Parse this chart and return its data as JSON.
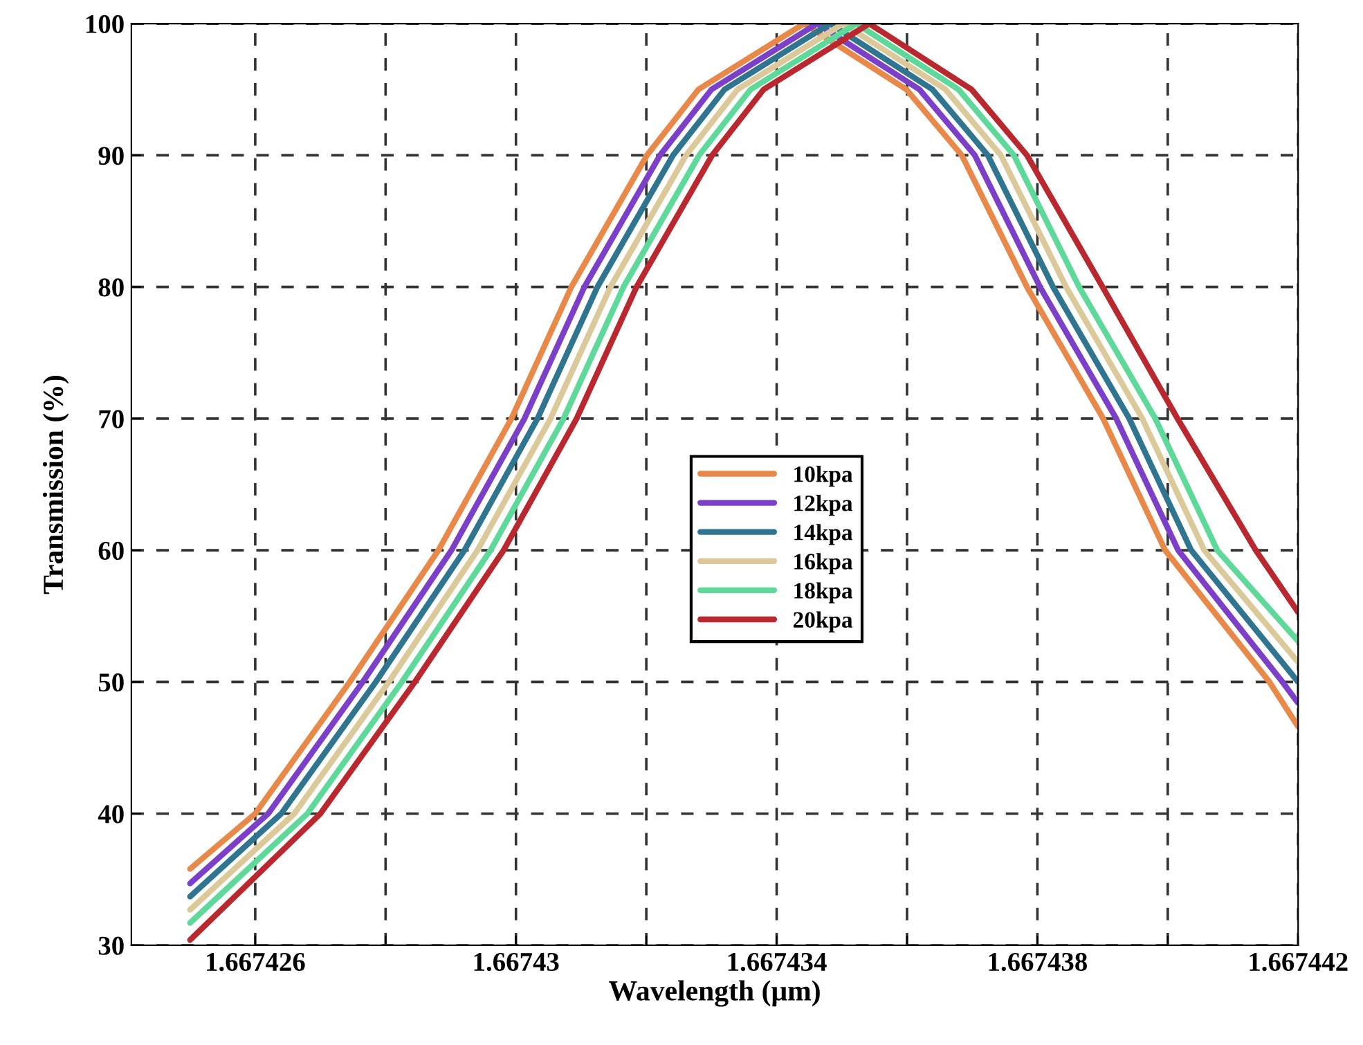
{
  "chart_data": {
    "type": "line",
    "xlabel": "Wavelength (μm)",
    "ylabel": "Transmission (%)",
    "xlim": [
      1.6674241,
      1.667442
    ],
    "ylim": [
      30,
      100
    ],
    "xticks": [
      1.667426,
      {
        "value": 1.667428,
        "label": null
      },
      1.66743,
      {
        "value": 1.667432,
        "label": null
      },
      1.667434,
      {
        "value": 1.667436,
        "label": null
      },
      1.667438,
      {
        "value": 1.66744,
        "label": null
      },
      1.667442
    ],
    "yticks": [
      30,
      40,
      50,
      60,
      70,
      80,
      90,
      100
    ],
    "grid": true,
    "legend": "center",
    "marker": "none",
    "line_style": "solid",
    "series": [
      {
        "name": "10kpa",
        "color": "#e8894a",
        "x": [
          1.667425,
          1.667426,
          1.66742745,
          1.66742881,
          1.66742993,
          1.66743085,
          1.66743201,
          1.6674328,
          1.66743442,
          1.66743599,
          1.66743684,
          1.66743784,
          1.66743901,
          1.66743996,
          1.66744156,
          1.667442
        ],
        "values": [
          35.8,
          40,
          50,
          60,
          70,
          80,
          90,
          95,
          100,
          95,
          90,
          80,
          70,
          60,
          50,
          46.6
        ]
      },
      {
        "name": "12kpa",
        "color": "#7b3fc8",
        "x": [
          1.667425,
          1.6674262,
          1.66742765,
          1.66742901,
          1.66743013,
          1.66743105,
          1.66743221,
          1.667433,
          1.66743462,
          1.66743619,
          1.66743704,
          1.66743804,
          1.66743921,
          1.66744016,
          1.66744176,
          1.667442
        ],
        "values": [
          34.7,
          40,
          50,
          60,
          70,
          80,
          90,
          95,
          100,
          95,
          90,
          80,
          70,
          60,
          50,
          48.4
        ]
      },
      {
        "name": "14kpa",
        "color": "#2f7590",
        "x": [
          1.667425,
          1.6674264,
          1.66742785,
          1.66742921,
          1.66743033,
          1.66743125,
          1.66743241,
          1.6674332,
          1.66743482,
          1.66743639,
          1.66743724,
          1.66743824,
          1.66743941,
          1.66744036,
          1.667442
        ],
        "values": [
          33.7,
          40,
          50,
          60,
          70,
          80,
          90,
          95,
          100,
          95,
          90,
          80,
          70,
          60,
          50.0
        ]
      },
      {
        "name": "16kpa",
        "color": "#dcc99a",
        "x": [
          1.667425,
          1.6674266,
          1.66742805,
          1.66742941,
          1.66743053,
          1.66743145,
          1.66743261,
          1.6674334,
          1.66743502,
          1.66743659,
          1.66743744,
          1.66743844,
          1.66743961,
          1.66744056,
          1.667442
        ],
        "values": [
          32.7,
          40,
          50,
          60,
          70,
          80,
          90,
          95,
          100,
          95,
          90,
          80,
          70,
          60,
          51.5
        ]
      },
      {
        "name": "18kpa",
        "color": "#5ed99a",
        "x": [
          1.667425,
          1.6674268,
          1.66742825,
          1.66742961,
          1.66743073,
          1.66743165,
          1.66743281,
          1.6674336,
          1.66743522,
          1.66743679,
          1.66743764,
          1.66743864,
          1.66743981,
          1.66744076,
          1.667442
        ],
        "values": [
          31.7,
          40,
          50,
          60,
          70,
          80,
          90,
          95,
          100,
          95,
          90,
          80,
          70,
          60,
          53.1
        ]
      },
      {
        "name": "20kpa",
        "color": "#b8282e",
        "x": [
          1.667425,
          1.667427,
          1.66742845,
          1.66742981,
          1.66743093,
          1.66743185,
          1.66743301,
          1.6674338,
          1.66743542,
          1.66743699,
          1.66743784,
          1.667439,
          1.66744015,
          1.66744135,
          1.667442
        ],
        "values": [
          30.4,
          40,
          50,
          60,
          70,
          80,
          90,
          95,
          100,
          95,
          90,
          80,
          70,
          60,
          55.3
        ]
      }
    ]
  }
}
